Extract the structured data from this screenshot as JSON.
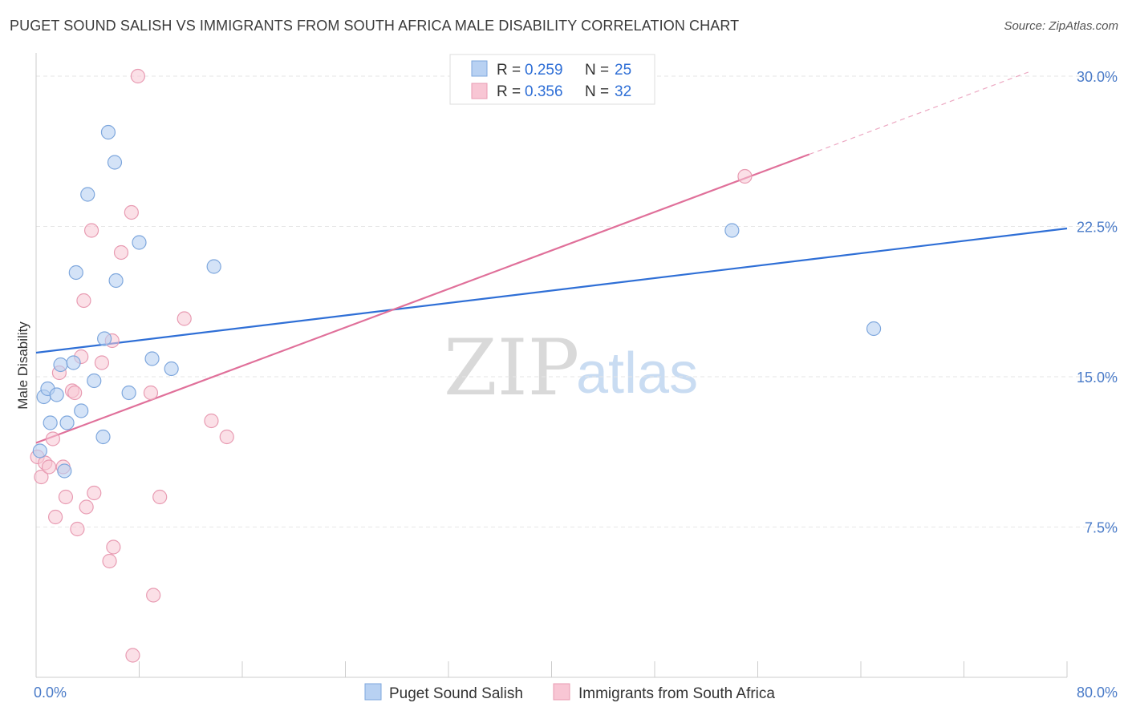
{
  "title": "PUGET SOUND SALISH VS IMMIGRANTS FROM SOUTH AFRICA MALE DISABILITY CORRELATION CHART",
  "source": "Source: ZipAtlas.com",
  "watermark": {
    "zip": "ZIP",
    "atlas": "atlas"
  },
  "colors": {
    "blue_fill": "#b8d1f2",
    "blue_stroke": "#7ea7dd",
    "blue_line": "#2f6fd6",
    "pink_fill": "#f8c6d4",
    "pink_stroke": "#e89bb2",
    "pink_line": "#e0709a",
    "axis_label": "#4a7bc8",
    "grid": "#e6e6e6"
  },
  "legend": {
    "series1": {
      "r_label": "R =",
      "r_value": "0.259",
      "n_label": "N =",
      "n_value": "25"
    },
    "series2": {
      "r_label": "R =",
      "r_value": "0.356",
      "n_label": "N =",
      "n_value": "32"
    }
  },
  "chart_data": {
    "type": "scatter",
    "xlabel": "",
    "ylabel": "Male Disability",
    "xlim": [
      0,
      80
    ],
    "ylim": [
      0,
      31
    ],
    "x_tick_labels": [
      "0.0%",
      "80.0%"
    ],
    "y_ticks": [
      7.5,
      15.0,
      22.5,
      30.0
    ],
    "y_tick_labels": [
      "7.5%",
      "15.0%",
      "22.5%",
      "30.0%"
    ],
    "grid": "horizontal dashed",
    "legend_position": "bottom",
    "series": [
      {
        "name": "Puget Sound Salish",
        "color": "#b8d1f2",
        "points": [
          [
            0.3,
            11.3
          ],
          [
            0.6,
            14.0
          ],
          [
            0.9,
            14.4
          ],
          [
            1.1,
            12.7
          ],
          [
            1.6,
            14.1
          ],
          [
            1.9,
            15.6
          ],
          [
            2.2,
            10.3
          ],
          [
            2.4,
            12.7
          ],
          [
            2.9,
            15.7
          ],
          [
            3.1,
            20.2
          ],
          [
            3.5,
            13.3
          ],
          [
            4.0,
            24.1
          ],
          [
            4.5,
            14.8
          ],
          [
            5.2,
            12.0
          ],
          [
            5.3,
            16.9
          ],
          [
            5.6,
            27.2
          ],
          [
            6.1,
            25.7
          ],
          [
            6.2,
            19.8
          ],
          [
            7.2,
            14.2
          ],
          [
            8.0,
            21.7
          ],
          [
            9.0,
            15.9
          ],
          [
            10.5,
            15.4
          ],
          [
            13.8,
            20.5
          ],
          [
            54.0,
            22.3
          ],
          [
            65.0,
            17.4
          ]
        ],
        "trend": {
          "x": [
            0,
            80
          ],
          "y": [
            16.2,
            22.4
          ]
        }
      },
      {
        "name": "Immigrants from South Africa",
        "color": "#f8c6d4",
        "points": [
          [
            0.1,
            11.0
          ],
          [
            0.4,
            10.0
          ],
          [
            0.7,
            10.7
          ],
          [
            1.0,
            10.5
          ],
          [
            1.3,
            11.9
          ],
          [
            1.5,
            8.0
          ],
          [
            1.8,
            15.2
          ],
          [
            2.1,
            10.5
          ],
          [
            2.3,
            9.0
          ],
          [
            2.8,
            14.3
          ],
          [
            3.0,
            14.2
          ],
          [
            3.2,
            7.4
          ],
          [
            3.5,
            16.0
          ],
          [
            3.7,
            18.8
          ],
          [
            3.9,
            8.5
          ],
          [
            4.3,
            22.3
          ],
          [
            4.5,
            9.2
          ],
          [
            5.1,
            15.7
          ],
          [
            5.7,
            5.8
          ],
          [
            5.9,
            16.8
          ],
          [
            6.0,
            6.5
          ],
          [
            6.6,
            21.2
          ],
          [
            7.5,
            1.1
          ],
          [
            7.4,
            23.2
          ],
          [
            7.9,
            30.0
          ],
          [
            8.9,
            14.2
          ],
          [
            9.1,
            4.1
          ],
          [
            9.6,
            9.0
          ],
          [
            11.5,
            17.9
          ],
          [
            13.6,
            12.8
          ],
          [
            14.8,
            12.0
          ],
          [
            55.0,
            25.0
          ]
        ],
        "trend": {
          "x": [
            0,
            60
          ],
          "y": [
            11.7,
            26.1
          ]
        },
        "trend_dashed": {
          "x": [
            60,
            77
          ],
          "y": [
            26.1,
            30.2
          ]
        }
      }
    ]
  }
}
